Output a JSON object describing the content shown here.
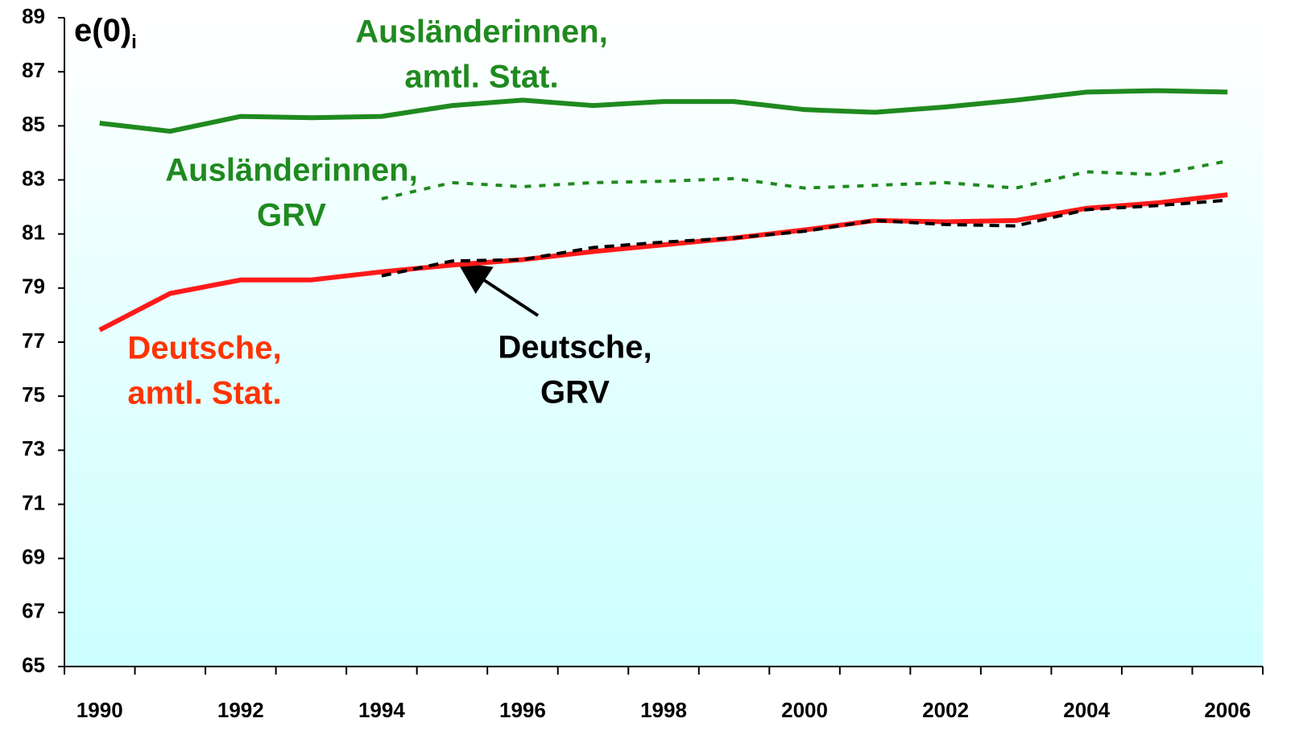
{
  "chart_data": {
    "type": "line",
    "ylabel": {
      "main": "e(0)",
      "sub": "i"
    },
    "categories": [
      "1990",
      null,
      "1992",
      null,
      "1994",
      null,
      "1996",
      null,
      "1998",
      null,
      "2000",
      null,
      "2002",
      null,
      "2004",
      null,
      "2006"
    ],
    "ylim": [
      65,
      89
    ],
    "yticks": [
      65,
      67,
      69,
      71,
      73,
      75,
      77,
      79,
      81,
      83,
      85,
      87,
      89
    ],
    "series": [
      {
        "label_lines": [
          "Ausländerinnen,",
          "amtl. Stat."
        ],
        "color": "#1f8a1f",
        "dash": "solid",
        "values": [
          85.1,
          84.8,
          85.35,
          85.3,
          85.35,
          85.75,
          85.95,
          85.75,
          85.9,
          85.9,
          85.6,
          85.5,
          85.7,
          85.95,
          86.25,
          86.3,
          86.25
        ]
      },
      {
        "label_lines": [
          "Ausländerinnen,",
          "GRV"
        ],
        "color": "#1f8a1f",
        "dash": "dotted",
        "values": [
          null,
          null,
          null,
          null,
          82.3,
          82.9,
          82.75,
          82.9,
          82.95,
          83.05,
          82.7,
          82.8,
          82.9,
          82.7,
          83.3,
          83.2,
          83.7
        ]
      },
      {
        "label_lines": [
          "Deutsche,",
          "amtl. Stat."
        ],
        "color": "#ff1a1a",
        "dash": "solid",
        "values": [
          77.45,
          78.8,
          79.3,
          79.3,
          79.6,
          79.85,
          80.05,
          80.35,
          80.6,
          80.85,
          81.15,
          81.5,
          81.45,
          81.5,
          81.95,
          82.15,
          82.45
        ]
      },
      {
        "label_lines": [
          "Deutsche,",
          "GRV"
        ],
        "color": "#000000",
        "dash": "dashed",
        "values": [
          null,
          null,
          null,
          null,
          79.45,
          80.0,
          80.05,
          80.5,
          80.7,
          80.85,
          81.1,
          81.5,
          81.35,
          81.3,
          81.9,
          82.05,
          82.25
        ]
      }
    ]
  }
}
